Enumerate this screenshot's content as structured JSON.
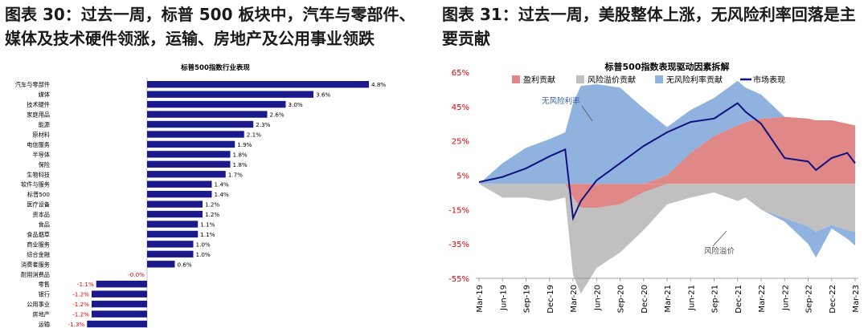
{
  "left_figure": {
    "title": "图表 30：过去一周，标普 500 板块中，汽车与零部件、媒体及技术硬件领涨，运输、房地产及公用事业领跌"
  },
  "right_figure": {
    "title": "图表 31：过去一周，美股整体上涨，无风险利率回落是主要贡献"
  },
  "colors": {
    "bar": "#1a1a8c",
    "neg_label": "#e00000",
    "profit": "#e08888",
    "risk": "#c0c0c0",
    "rf": "#8fb3de",
    "market": "#101080"
  },
  "chart_data": [
    {
      "type": "bar",
      "orientation": "horizontal",
      "title": "标普500指数行业表现",
      "categories": [
        "汽车与零部件",
        "媒体",
        "技术硬件",
        "家庭用品",
        "能源",
        "原材料",
        "电信服务",
        "半导体",
        "保险",
        "生物科技",
        "软件与服务",
        "标普500",
        "医疗设备",
        "资本品",
        "食品",
        "食品烟草",
        "商业服务",
        "综合金融",
        "消费者服务",
        "耐用消费品",
        "零售",
        "银行",
        "公用事业",
        "房地产",
        "运输"
      ],
      "values": [
        4.8,
        3.6,
        3.0,
        2.6,
        2.3,
        2.1,
        1.9,
        1.8,
        1.8,
        1.7,
        1.4,
        1.4,
        1.2,
        1.2,
        1.1,
        1.1,
        1.0,
        1.0,
        0.6,
        0.0,
        -1.1,
        -1.2,
        -1.2,
        -1.2,
        -1.3
      ],
      "value_labels": [
        "4.8%",
        "3.6%",
        "3.0%",
        "2.6%",
        "2.3%",
        "2.1%",
        "1.9%",
        "1.8%",
        "1.8%",
        "1.7%",
        "1.4%",
        "1.4%",
        "1.2%",
        "1.2%",
        "1.1%",
        "1.1%",
        "1.0%",
        "1.0%",
        "0.6%",
        "-0.0%",
        "-1.1%",
        "-1.2%",
        "-1.2%",
        "-1.2%",
        "-1.3%"
      ],
      "unit": "%"
    },
    {
      "type": "area",
      "title": "标普500指数表现驱动因素拆解",
      "legend": [
        "盈利贡献",
        "风险溢价贡献",
        "无风险利率贡献",
        "市场表现"
      ],
      "legend_position": "top",
      "y_ticks": [
        "65%",
        "45%",
        "25%",
        "5%",
        "-15%",
        "-35%",
        "-55%"
      ],
      "ylim": [
        -55,
        65
      ],
      "x_ticks": [
        "Mar-19",
        "Jun-19",
        "Sep-19",
        "Dec-19",
        "Mar-20",
        "Jun-20",
        "Sep-20",
        "Dec-20",
        "Mar-21",
        "Jun-21",
        "Sep-21",
        "Dec-21",
        "Mar-22",
        "Jun-22",
        "Sep-22",
        "Dec-22",
        "Mar-23"
      ],
      "annotations": [
        "无风险利率",
        "风险溢价"
      ],
      "x": [
        "Mar-19",
        "Jun-19",
        "Sep-19",
        "Dec-19",
        "Feb-20",
        "Mar-20",
        "Apr-20",
        "Jun-20",
        "Sep-20",
        "Dec-20",
        "Mar-21",
        "Jun-21",
        "Sep-21",
        "Dec-21",
        "Jan-22",
        "Mar-22",
        "Jun-22",
        "Sep-22",
        "Oct-22",
        "Dec-22",
        "Feb-23",
        "Mar-23"
      ],
      "series": [
        {
          "name": "市场表现",
          "values": [
            1,
            4,
            9,
            16,
            20,
            -20,
            -10,
            2,
            12,
            22,
            30,
            36,
            38,
            47,
            42,
            35,
            15,
            13,
            8,
            15,
            18,
            12
          ]
        },
        {
          "name": "盈利贡献",
          "values": [
            0,
            0,
            0,
            0,
            0,
            -8,
            -14,
            -14,
            -12,
            -5,
            5,
            18,
            28,
            34,
            36,
            38,
            39,
            38,
            37,
            37,
            35,
            34
          ]
        },
        {
          "name": "风险溢价贡献",
          "values": [
            0,
            -8,
            -8,
            -10,
            -8,
            -45,
            -50,
            -35,
            -28,
            -22,
            -12,
            -8,
            -5,
            -10,
            -8,
            -15,
            -20,
            -25,
            -28,
            -24,
            -27,
            -28
          ]
        },
        {
          "name": "无风险利率贡献",
          "values": [
            0,
            12,
            21,
            26,
            30,
            47,
            57,
            58,
            56,
            44,
            28,
            25,
            22,
            26,
            20,
            14,
            -2,
            -10,
            -15,
            -2,
            -5,
            -8
          ]
        }
      ]
    }
  ]
}
